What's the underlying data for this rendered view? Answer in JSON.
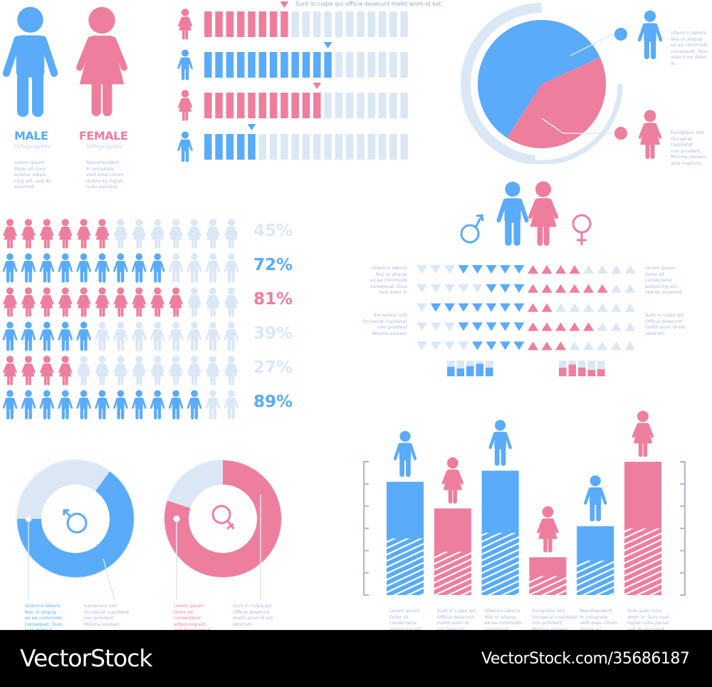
{
  "colors": {
    "male": "#5aabf9",
    "female": "#ee7e9d",
    "empty": "#dbe7f5",
    "text": "#aab8d4"
  },
  "intro": {
    "male": {
      "title": "MALE",
      "subtitle": "infographic",
      "text": "Lorem ipsum\nDolor sit cons\nectetur adipis\ncing elit, sed do\neiusmod."
    },
    "female": {
      "title": "FEMALE",
      "subtitle": "infographic",
      "text": "Reprehenderit\nIn voluptate\nvelit esse cillum\ndolore eu fugiat\nnulla pariatur."
    }
  },
  "segment_bars": {
    "caption": "Sunt in culpa qui officia deserunt mollit anim id est.",
    "total": 19,
    "rows": [
      {
        "gender": "female",
        "filled": 8
      },
      {
        "gender": "male",
        "filled": 12
      },
      {
        "gender": "female",
        "filled": 11
      },
      {
        "gender": "male",
        "filled": 5
      }
    ]
  },
  "pie": {
    "male_pct": 59,
    "female_pct": 41,
    "male_text": "Ullamco laboris\nNisi ut aliquip\nex ea commodo\nconsequat. Duis\naute irure dolor in.",
    "female_text": "Excepteur sint\nOccaecat cupidatat\nnon proident,\nMinima veniam,\nquis nostrum."
  },
  "icon_grid": {
    "total": 13,
    "rows": [
      {
        "gender": "female",
        "filled": 6,
        "label": "45%",
        "highlight": false
      },
      {
        "gender": "male",
        "filled": 9,
        "label": "72%",
        "highlight": true
      },
      {
        "gender": "female",
        "filled": 10,
        "label": "81%",
        "highlight": true
      },
      {
        "gender": "male",
        "filled": 5,
        "label": "39%",
        "highlight": false
      },
      {
        "gender": "female",
        "filled": 4,
        "label": "27%",
        "highlight": false
      },
      {
        "gender": "male",
        "filled": 11,
        "label": "89%",
        "highlight": true
      }
    ]
  },
  "triangles": {
    "per_side": 8,
    "rows": [
      {
        "male": 5,
        "female": 4
      },
      {
        "male": 3,
        "female": 6
      },
      {
        "male": 7,
        "female": 2
      },
      {
        "male": 5,
        "female": 5
      },
      {
        "male": 4,
        "female": 3
      }
    ],
    "left_texts": [
      "Ullamco laboris\nNisi ut aliquip\nex ea commodo\nconsequat. Duis\nrure dolor in",
      "Excepteur sint\nOccaecat cupidatat\nnon proident\nMinima veniam"
    ],
    "right_texts": [
      "Lorem ipsum\nDolor sit\nconsectetur\nadipiscing elit,\nsed do eiusmod.",
      "Sunt in culpa qui\nOfficia deserunt\nmollit anim id est\nlaborum."
    ],
    "mini_male": [
      0.6,
      0.5,
      0.65,
      0.8,
      0.55
    ],
    "mini_female": [
      0.55,
      0.75,
      0.55,
      0.4,
      0.45
    ]
  },
  "donuts": [
    {
      "gender": "male",
      "pct": 65,
      "text_a": "Ullamco laboris\nNisi ut aliquip\nex ea commodo\nconsequat. Duis\nrure dolor in",
      "text_b": "Excepteur sint\nOccaecat cupidatat\nnon proident\nMinima veniam"
    },
    {
      "gender": "female",
      "pct": 80,
      "text_a": "Lorem ipsum\nDolor sit\nconsectetur\nadipiscing elit,\nsed do eiusmod.",
      "text_b": "Sunt in culpa qui\nOfficia deserunt\nmollit anim id est\nlaborum."
    }
  ],
  "bar_chart": {
    "ymax": 6,
    "bars": [
      {
        "gender": "male",
        "value": 5.1,
        "caption": "Lorem ipsum\nDolor sit\nconsectetur\nadipiscing elit."
      },
      {
        "gender": "female",
        "value": 3.9,
        "caption": "Sunt in culpa qui\nOfficia deserunt\nmollit anim id\nest laborum."
      },
      {
        "gender": "male",
        "value": 5.6,
        "caption": "Ullamco laboris\nNisi ut aliquip\nex ea commodo\nconsequat."
      },
      {
        "gender": "female",
        "value": 1.7,
        "caption": "Excepteur sint\nOccaecat cupidatat\nnon proident,\nMinima veniam."
      },
      {
        "gender": "male",
        "value": 3.1,
        "caption": "Reprehenderit\nIn voluptate\nvelit esse cillum\ndolore eu."
      },
      {
        "gender": "female",
        "value": 6.0,
        "caption": "Duis aute irure\ndolor in. Quis nost\nfugiat nulla pariat\nsed do eiusmod."
      }
    ]
  },
  "footer": {
    "brand": "VectorStock",
    "registered": "®",
    "url": "VectorStock.com/35686187"
  }
}
